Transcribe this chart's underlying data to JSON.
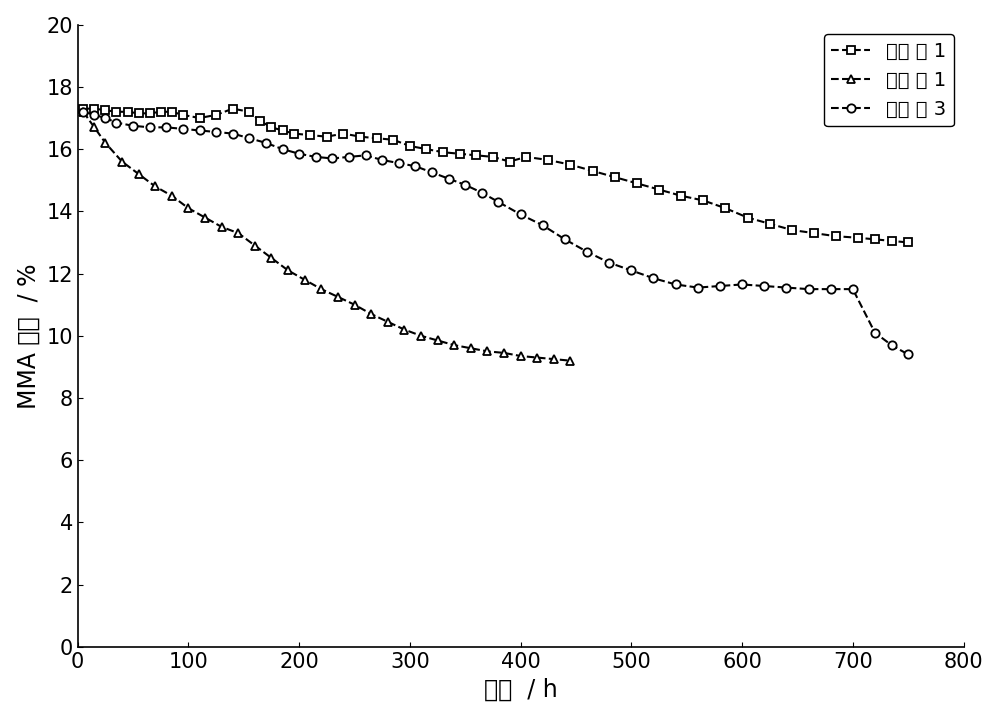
{
  "series1_label": "实施 例 1",
  "series2_label": "对比 例 1",
  "series3_label": "对比 例 3",
  "series1_x": [
    5,
    15,
    25,
    35,
    45,
    55,
    65,
    75,
    85,
    95,
    110,
    125,
    140,
    155,
    165,
    175,
    185,
    195,
    210,
    225,
    240,
    255,
    270,
    285,
    300,
    315,
    330,
    345,
    360,
    375,
    390,
    405,
    425,
    445,
    465,
    485,
    505,
    525,
    545,
    565,
    585,
    605,
    625,
    645,
    665,
    685,
    705,
    720,
    735,
    750
  ],
  "series1_y": [
    17.3,
    17.3,
    17.25,
    17.2,
    17.2,
    17.15,
    17.15,
    17.2,
    17.2,
    17.1,
    17.0,
    17.1,
    17.3,
    17.2,
    16.9,
    16.7,
    16.6,
    16.5,
    16.45,
    16.4,
    16.5,
    16.4,
    16.35,
    16.3,
    16.1,
    16.0,
    15.9,
    15.85,
    15.8,
    15.75,
    15.6,
    15.75,
    15.65,
    15.5,
    15.3,
    15.1,
    14.9,
    14.7,
    14.5,
    14.35,
    14.1,
    13.8,
    13.6,
    13.4,
    13.3,
    13.2,
    13.15,
    13.1,
    13.05,
    13.0
  ],
  "series2_x": [
    5,
    15,
    25,
    40,
    55,
    70,
    85,
    100,
    115,
    130,
    145,
    160,
    175,
    190,
    205,
    220,
    235,
    250,
    265,
    280,
    295,
    310,
    325,
    340,
    355,
    370,
    385,
    400,
    415,
    430,
    445
  ],
  "series2_y": [
    17.2,
    16.7,
    16.2,
    15.6,
    15.2,
    14.8,
    14.5,
    14.1,
    13.8,
    13.5,
    13.3,
    12.9,
    12.5,
    12.1,
    11.8,
    11.5,
    11.25,
    11.0,
    10.7,
    10.45,
    10.2,
    10.0,
    9.85,
    9.7,
    9.6,
    9.5,
    9.45,
    9.35,
    9.3,
    9.25,
    9.2
  ],
  "series3_x": [
    5,
    15,
    25,
    35,
    50,
    65,
    80,
    95,
    110,
    125,
    140,
    155,
    170,
    185,
    200,
    215,
    230,
    245,
    260,
    275,
    290,
    305,
    320,
    335,
    350,
    365,
    380,
    400,
    420,
    440,
    460,
    480,
    500,
    520,
    540,
    560,
    580,
    600,
    620,
    640,
    660,
    680,
    700,
    720,
    735,
    750
  ],
  "series3_y": [
    17.2,
    17.1,
    17.0,
    16.85,
    16.75,
    16.7,
    16.7,
    16.65,
    16.6,
    16.55,
    16.5,
    16.35,
    16.2,
    16.0,
    15.85,
    15.75,
    15.7,
    15.75,
    15.8,
    15.65,
    15.55,
    15.45,
    15.25,
    15.05,
    14.85,
    14.6,
    14.3,
    13.9,
    13.55,
    13.1,
    12.7,
    12.35,
    12.1,
    11.85,
    11.65,
    11.55,
    11.6,
    11.65,
    11.6,
    11.55,
    11.5,
    11.5,
    11.5,
    10.1,
    9.7,
    9.4
  ],
  "xlabel": "时间  / h",
  "ylabel": "MMA 收率  / %",
  "xlim": [
    0,
    800
  ],
  "ylim": [
    0,
    20
  ],
  "xticks": [
    0,
    100,
    200,
    300,
    400,
    500,
    600,
    700,
    800
  ],
  "yticks": [
    0,
    2,
    4,
    6,
    8,
    10,
    12,
    14,
    16,
    18,
    20
  ],
  "line_color": "#000000",
  "line_width": 1.5,
  "marker_size": 6,
  "bg_color": "#ffffff",
  "font_size_labels": 17,
  "font_size_ticks": 15,
  "font_size_legend": 14
}
